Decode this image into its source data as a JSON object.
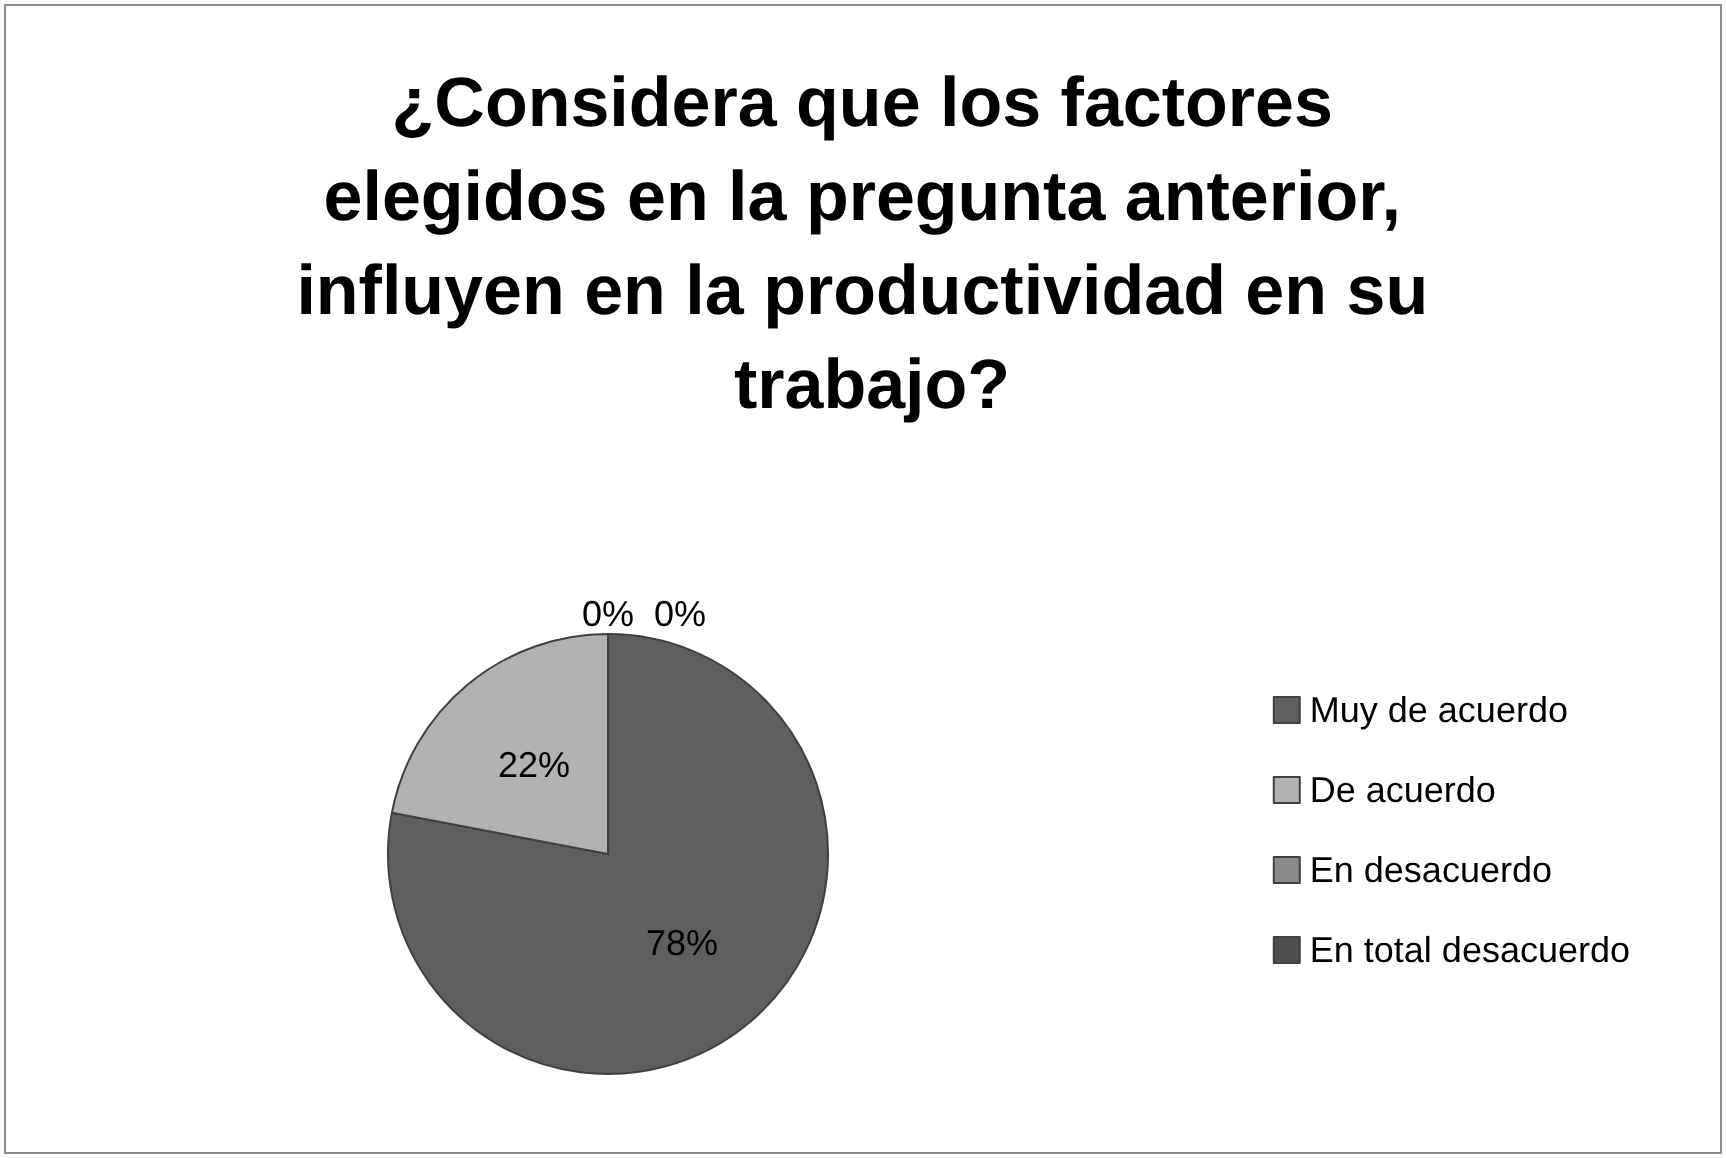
{
  "chart_data": {
    "type": "pie",
    "title": "¿Considera que los factores elegidos en la pregunta anterior, influyen en la productividad en su trabajo?",
    "categories": [
      "Muy de acuerdo",
      "De acuerdo",
      "En desacuerdo",
      "En total desacuerdo"
    ],
    "values": [
      78,
      22,
      0,
      0
    ],
    "colors": [
      "#5f5f5f",
      "#b2b2b2",
      "#8a8a8a",
      "#4e4e4e"
    ],
    "value_labels": [
      "78%",
      "22%",
      "0%",
      "0%"
    ],
    "legend": "right"
  }
}
